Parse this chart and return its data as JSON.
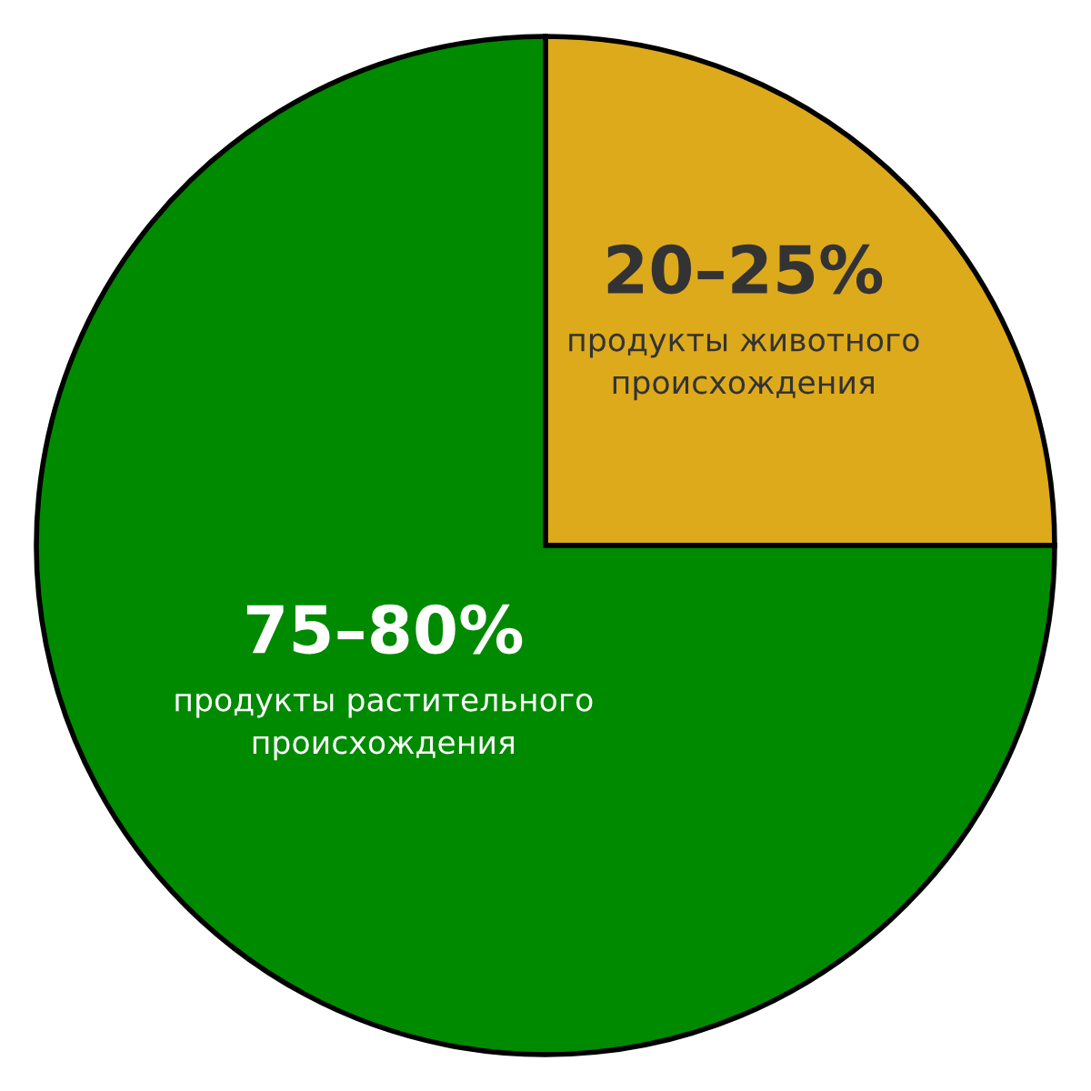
{
  "chart_data": {
    "type": "pie",
    "categories": [
      "продукты животного происхождения",
      "продукты растительного происхождения"
    ],
    "values": [
      25,
      75
    ],
    "annotations": [
      "20–25%",
      "75–80%"
    ],
    "colors": [
      "#ddaa1c",
      "#008a00"
    ],
    "legend": false
  }
}
